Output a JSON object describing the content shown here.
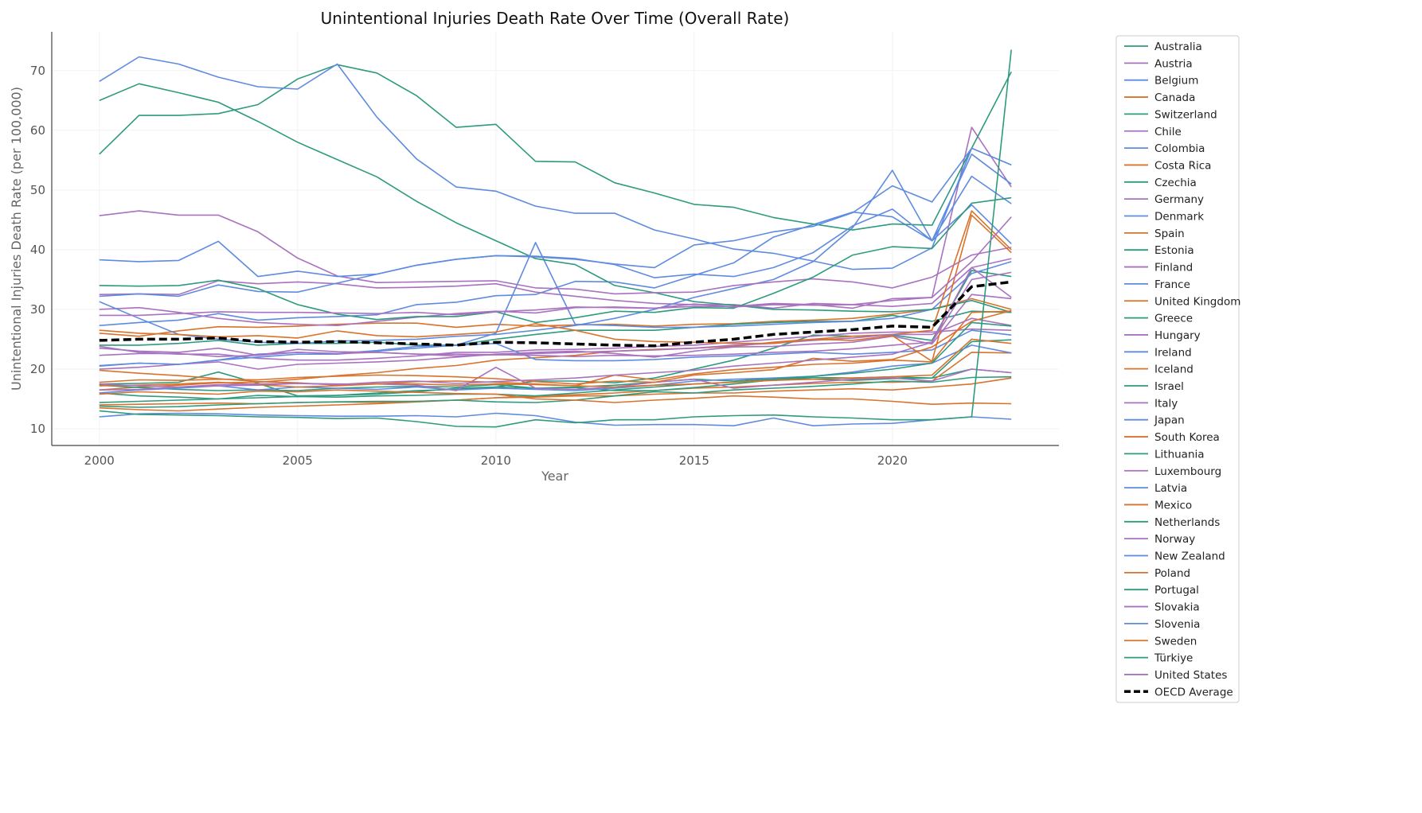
{
  "chart_data": {
    "type": "line",
    "title": "Unintentional Injuries Death Rate Over Time (Overall Rate)",
    "xlabel": "Year",
    "ylabel": "Unintentional Injuries Death Rate (per 100,000)",
    "xlim": [
      1998.8,
      2024.2
    ],
    "ylim": [
      7.2,
      76.5
    ],
    "xticks": [
      2000,
      2005,
      2010,
      2015,
      2020
    ],
    "yticks": [
      10,
      20,
      30,
      40,
      50,
      60,
      70
    ],
    "grid": true,
    "legend_position": "outside-right",
    "palette": [
      "#2e9a7e",
      "#a872c0",
      "#5e8be0",
      "#d9722b"
    ],
    "average_color": "#000000",
    "x": [
      2000,
      2001,
      2002,
      2003,
      2004,
      2005,
      2006,
      2007,
      2008,
      2009,
      2010,
      2011,
      2012,
      2013,
      2014,
      2015,
      2016,
      2017,
      2018,
      2019,
      2020,
      2021,
      2022,
      2023
    ],
    "series": [
      {
        "name": "Australia",
        "values": [
          17.5,
          17.6,
          17.8,
          19.5,
          17.6,
          15.5,
          15.6,
          16,
          16.4,
          16.6,
          17,
          18,
          18,
          17.7,
          18.5,
          20,
          21.5,
          23.5,
          25.7,
          25.5,
          25.7,
          24.8,
          36.5,
          35.5
        ]
      },
      {
        "name": "Austria",
        "values": [
          23.8,
          22.8,
          22.5,
          22.5,
          21.8,
          21.5,
          21.5,
          21.8,
          22.2,
          22.8,
          22.8,
          23.2,
          23.3,
          23.5,
          23.8,
          24,
          24.5,
          25,
          25.5,
          26,
          26.2,
          26.2,
          26.7,
          26.5
        ]
      },
      {
        "name": "Belgium",
        "values": [
          27.3,
          27.8,
          28.2,
          29.3,
          28.2,
          28.6,
          28.8,
          29.1,
          30.8,
          31.2,
          32.3,
          32.5,
          34.7,
          34.6,
          33.6,
          35.7,
          37.8,
          42.1,
          44.2,
          46.3,
          45.5,
          41.5,
          47.5,
          41
        ]
      },
      {
        "name": "Canada",
        "values": [
          26,
          25.5,
          26.4,
          27.1,
          27,
          27.2,
          27.5,
          27.7,
          27.7,
          27,
          27.5,
          27.2,
          27.4,
          27.5,
          27.2,
          27.5,
          27.6,
          28,
          28.2,
          28.5,
          29.2,
          30,
          31.8,
          30
        ]
      },
      {
        "name": "Switzerland",
        "values": [
          24,
          24,
          24.3,
          24.8,
          24,
          24.3,
          24.3,
          24.5,
          24,
          24,
          25,
          25.8,
          26.5,
          26.5,
          26.5,
          27,
          27.5,
          27.8,
          28,
          28,
          29,
          28,
          29.7,
          29.5
        ]
      },
      {
        "name": "Chile",
        "values": [
          32.5,
          32.6,
          32.5,
          34.8,
          34.3,
          34.6,
          34.3,
          33.6,
          33.7,
          33.9,
          34.3,
          32.9,
          32.2,
          31.5,
          31,
          30.8,
          30.8,
          30.2,
          31,
          30.8,
          30.5,
          31,
          37,
          38.5
        ]
      },
      {
        "name": "Colombia",
        "values": [
          20.5,
          21,
          20.8,
          21.5,
          22,
          22.5,
          22.5,
          23,
          23.5,
          24,
          26,
          41.2,
          27.5,
          27.3,
          27,
          27,
          27.2,
          27.5,
          27.8,
          28,
          28.5,
          30,
          36,
          38
        ]
      },
      {
        "name": "Costa Rica",
        "values": [
          16.5,
          17,
          17.3,
          17.7,
          17.8,
          18.3,
          18.9,
          19.4,
          20.1,
          20.6,
          21.5,
          21.9,
          22.3,
          23,
          23.3,
          23.5,
          23.8,
          24.5,
          25,
          25.5,
          25.8,
          26.5,
          46.5,
          40
        ]
      },
      {
        "name": "Czechia",
        "values": [
          16,
          15.5,
          15.3,
          15,
          15.6,
          15.4,
          15.6,
          15.8,
          16.2,
          16.8,
          17,
          16.8,
          17,
          17.3,
          17.8,
          18.3,
          18,
          18.5,
          18.3,
          18.1,
          18.4,
          18.5,
          20,
          19.4
        ]
      },
      {
        "name": "Germany",
        "values": [
          20,
          20.3,
          20.8,
          21.2,
          20,
          20.8,
          21,
          21.2,
          21.5,
          22,
          22.5,
          22.8,
          23,
          22.6,
          22,
          23,
          23.7,
          23.8,
          24.2,
          24.5,
          25.5,
          24.2,
          32.5,
          31.8
        ]
      },
      {
        "name": "Denmark",
        "values": [
          20.6,
          21,
          20.8,
          21.5,
          22.5,
          22.8,
          22.6,
          23.1,
          23.8,
          24,
          24.3,
          21.6,
          21.4,
          21.4,
          21.6,
          22,
          22.2,
          22.5,
          22.8,
          22.5,
          22.8,
          23.2,
          26.5,
          25.7
        ]
      },
      {
        "name": "Spain",
        "values": [
          14,
          14.1,
          14.2,
          14.3,
          14.2,
          14.4,
          14.5,
          14.4,
          14.6,
          14.8,
          15.2,
          15.3,
          15.5,
          15.5,
          15.8,
          16,
          16,
          16.3,
          16.5,
          16.7,
          16.5,
          17,
          17.5,
          18.5
        ]
      },
      {
        "name": "Estonia",
        "values": [
          65,
          67.8,
          66.3,
          64.7,
          61.5,
          58,
          55.1,
          52.2,
          48.1,
          44.5,
          41.5,
          38.5,
          37.5,
          34,
          32.8,
          31.3,
          30.7,
          30,
          29.9,
          29.7,
          29.6,
          30,
          31.5,
          29.5
        ]
      },
      {
        "name": "Finland",
        "values": [
          30,
          30.3,
          29.5,
          28.5,
          27.8,
          27.5,
          27.3,
          28,
          28.7,
          29.3,
          29.7,
          29.4,
          30.3,
          30.4,
          30.2,
          30.5,
          30.5,
          31,
          30.8,
          30.2,
          31.8,
          32,
          60.5,
          50.5
        ]
      },
      {
        "name": "France",
        "values": [
          31.3,
          28.5,
          25.8,
          25,
          24.5,
          24.3,
          24.7,
          24.8,
          25,
          25.5,
          25.8,
          26.5,
          27.3,
          28.5,
          30,
          32,
          33.5,
          35,
          38,
          43.7,
          53.3,
          41.5,
          56,
          51
        ]
      },
      {
        "name": "United Kingdom",
        "values": [
          13.5,
          13.2,
          13,
          13.3,
          13.6,
          13.8,
          14,
          14.2,
          14.5,
          14.8,
          15.2,
          15.5,
          15.7,
          16,
          16.4,
          16.8,
          17,
          17.3,
          17.6,
          17.8,
          17.8,
          18,
          22.8,
          22.7
        ]
      },
      {
        "name": "Greece",
        "values": [
          17.3,
          16.9,
          16.6,
          16.4,
          16.5,
          16.4,
          16.8,
          17,
          17.1,
          17,
          17.4,
          16.8,
          16.9,
          16.4,
          16.4,
          16.9,
          17.5,
          18.2,
          18.6,
          18.5,
          18.7,
          18.5,
          24.6,
          24.9
        ]
      },
      {
        "name": "Hungary",
        "values": [
          45.7,
          46.5,
          45.8,
          45.8,
          43,
          38.6,
          35.6,
          34.5,
          34.6,
          34.7,
          34.8,
          33.6,
          33.4,
          32.6,
          32.8,
          32.9,
          34,
          34.6,
          35.1,
          34.6,
          33.6,
          35.4,
          39.1,
          40.4
        ]
      },
      {
        "name": "Ireland",
        "values": [
          16,
          16.5,
          16.8,
          17.2,
          16.5,
          17,
          16.8,
          16.6,
          17,
          16.5,
          16.8,
          16.6,
          16.4,
          16.8,
          17.3,
          18,
          18.3,
          18.5,
          18.8,
          19.5,
          20.5,
          21,
          24,
          22.7
        ]
      },
      {
        "name": "Iceland",
        "values": [
          19.8,
          19.3,
          18.9,
          18.4,
          17.9,
          17.7,
          17.3,
          17.6,
          17.5,
          17.3,
          17.5,
          17.4,
          17.2,
          19,
          18.2,
          19.2,
          19.9,
          20.3,
          20.8,
          21,
          21.5,
          21.2,
          29.5,
          29.7
        ]
      },
      {
        "name": "Israel",
        "values": [
          13.8,
          13.6,
          13.7,
          14,
          14.2,
          14.4,
          14.5,
          14.6,
          14.6,
          14.8,
          14.5,
          14.4,
          14.8,
          15.5,
          16.2,
          16,
          16.5,
          16.8,
          17.1,
          17.5,
          18,
          17.8,
          18.6,
          18.7
        ]
      },
      {
        "name": "Italy",
        "values": [
          22.3,
          22.6,
          22.6,
          22.1,
          22.3,
          23.3,
          22.9,
          22.8,
          22.5,
          22.5,
          22.4,
          22.6,
          22.8,
          23,
          23.2,
          23.5,
          24,
          24.3,
          24.8,
          25.2,
          25.8,
          25.8,
          28.5,
          27.3
        ]
      },
      {
        "name": "Japan",
        "values": [
          12,
          12.5,
          12.6,
          12.5,
          12.3,
          12.2,
          12.1,
          12.1,
          12.2,
          12,
          12.6,
          12.2,
          11.1,
          10.6,
          10.7,
          10.7,
          10.5,
          11.8,
          10.5,
          10.8,
          10.9,
          11.5,
          12,
          11.6
        ]
      },
      {
        "name": "South Korea",
        "values": [
          26.5,
          26,
          25.8,
          25.4,
          25.6,
          25.2,
          26.4,
          25.6,
          25.4,
          25.8,
          26.2,
          27.6,
          26.5,
          25,
          24.6,
          24.5,
          24.3,
          24.3,
          25,
          24.8,
          25.6,
          21.3,
          45.8,
          39.5
        ]
      },
      {
        "name": "Lithuania",
        "values": [
          56,
          62.5,
          62.5,
          62.8,
          64.3,
          68.6,
          71,
          69.6,
          65.8,
          60.5,
          61,
          54.8,
          54.7,
          51.2,
          49.5,
          47.6,
          47.1,
          45.4,
          44.3,
          43.3,
          44.3,
          44.1,
          57,
          69.8
        ]
      },
      {
        "name": "Luxembourg",
        "values": [
          16.5,
          16.6,
          17,
          17.2,
          17.3,
          17.6,
          17.5,
          17.5,
          17.3,
          16.4,
          20.3,
          16.8,
          16.6,
          17,
          17.8,
          18.3,
          16.8,
          17.3,
          17.8,
          18.3,
          18.5,
          18,
          20,
          19.4
        ]
      },
      {
        "name": "Latvia",
        "values": [
          68.2,
          72.3,
          71.1,
          68.9,
          67.3,
          66.9,
          71.1,
          62.2,
          55.2,
          50.5,
          49.8,
          47.3,
          46.1,
          46.1,
          43.3,
          41.8,
          40.1,
          39.4,
          38.1,
          36.7,
          36.9,
          40.3,
          57,
          54.2
        ]
      },
      {
        "name": "Mexico",
        "values": [
          17.8,
          18.2,
          18.1,
          18.3,
          18.2,
          18.6,
          18.8,
          19,
          18.9,
          18.7,
          18.4,
          17.9,
          17.5,
          18,
          17.8,
          19,
          19.4,
          19.9,
          21.8,
          21.3,
          21.6,
          23.7,
          28,
          29.8
        ]
      },
      {
        "name": "Netherlands",
        "values": [
          14.4,
          14.6,
          14.8,
          15,
          15.2,
          15.4,
          15.3,
          15.5,
          15.6,
          15.8,
          15.8,
          15.5,
          16,
          16.5,
          17,
          17.5,
          17.8,
          18.3,
          18.8,
          19.3,
          20,
          21,
          27.8,
          27.2
        ]
      },
      {
        "name": "Norway",
        "values": [
          23.5,
          23,
          22.8,
          23.5,
          22.3,
          22.8,
          22.6,
          22.8,
          22.5,
          22.2,
          22.4,
          22.3,
          22.1,
          22.3,
          22.2,
          22.3,
          22.5,
          22.8,
          23,
          23.4,
          24,
          24.5,
          37,
          32
        ]
      },
      {
        "name": "New Zealand",
        "values": [
          32.2,
          32.6,
          32.2,
          34.1,
          33,
          32.9,
          34.4,
          35.9,
          37.4,
          38.4,
          39,
          38.9,
          38.5,
          37.5,
          35.3,
          35.9,
          35.5,
          37,
          39.5,
          44,
          46.8,
          41.5,
          52.3,
          47.7
        ]
      },
      {
        "name": "Poland",
        "values": [
          17.2,
          17.3,
          17.5,
          17.8,
          17.4,
          17,
          17.2,
          17.5,
          17.9,
          18,
          17.8,
          17.5,
          17.2,
          17,
          17.3,
          17.5,
          17.8,
          18.1,
          18.3,
          18.5,
          18.7,
          19,
          25,
          24.3
        ]
      },
      {
        "name": "Portugal",
        "values": [
          34,
          33.9,
          34,
          34.9,
          33.5,
          30.8,
          29.2,
          28.3,
          28.8,
          28.8,
          29.6,
          27.8,
          28.6,
          29.7,
          29.5,
          30.3,
          30.2,
          32.7,
          35.4,
          39.1,
          40.5,
          40.2,
          47.8,
          48.7
        ]
      },
      {
        "name": "Slovakia",
        "values": [
          17.5,
          17.2,
          17,
          17.4,
          17.5,
          17.6,
          17.4,
          17.8,
          18,
          17.6,
          17.9,
          18.2,
          18.5,
          19,
          19.4,
          19.8,
          20.5,
          21,
          21.5,
          22,
          22.5,
          24.5,
          35,
          36.2
        ]
      },
      {
        "name": "Slovenia",
        "values": [
          38.3,
          38,
          38.2,
          41.4,
          35.5,
          36.4,
          35.5,
          35.9,
          37.4,
          38.4,
          39,
          38.8,
          38.4,
          37.6,
          37,
          40.8,
          41.5,
          43,
          43.9,
          46.2,
          50.7,
          48,
          57,
          54.2
        ]
      },
      {
        "name": "Sweden",
        "values": [
          15.8,
          16.2,
          16,
          15.8,
          16.3,
          16.2,
          16.5,
          16.3,
          16.1,
          15.9,
          15.8,
          15,
          14.8,
          14.4,
          14.8,
          15.1,
          15.5,
          15.3,
          15,
          15,
          14.6,
          14.1,
          14.3,
          14.2
        ]
      },
      {
        "name": "Türkiye",
        "values": [
          13,
          12.4,
          12.3,
          12.2,
          12,
          11.9,
          11.7,
          11.8,
          11.2,
          10.4,
          10.3,
          11.5,
          11,
          11.5,
          11.5,
          12,
          12.2,
          12.3,
          12,
          11.8,
          11.5,
          11.5,
          12,
          73.5
        ]
      },
      {
        "name": "United States",
        "values": [
          29,
          29,
          29.3,
          29.6,
          29.5,
          29.5,
          29.4,
          29.3,
          29.5,
          29.1,
          29.6,
          29.9,
          30.4,
          30.3,
          30.2,
          30.9,
          30.4,
          30.8,
          30.7,
          30.8,
          31.5,
          32,
          38,
          45.5
        ]
      }
    ],
    "average": {
      "name": "OECD Average",
      "values": [
        24.8,
        25,
        25,
        25.2,
        24.6,
        24.5,
        24.6,
        24.4,
        24.2,
        24,
        24.5,
        24.4,
        24.2,
        24,
        23.9,
        24.5,
        25,
        25.8,
        26.2,
        26.6,
        27.2,
        27,
        33.8,
        34.6
      ]
    }
  }
}
